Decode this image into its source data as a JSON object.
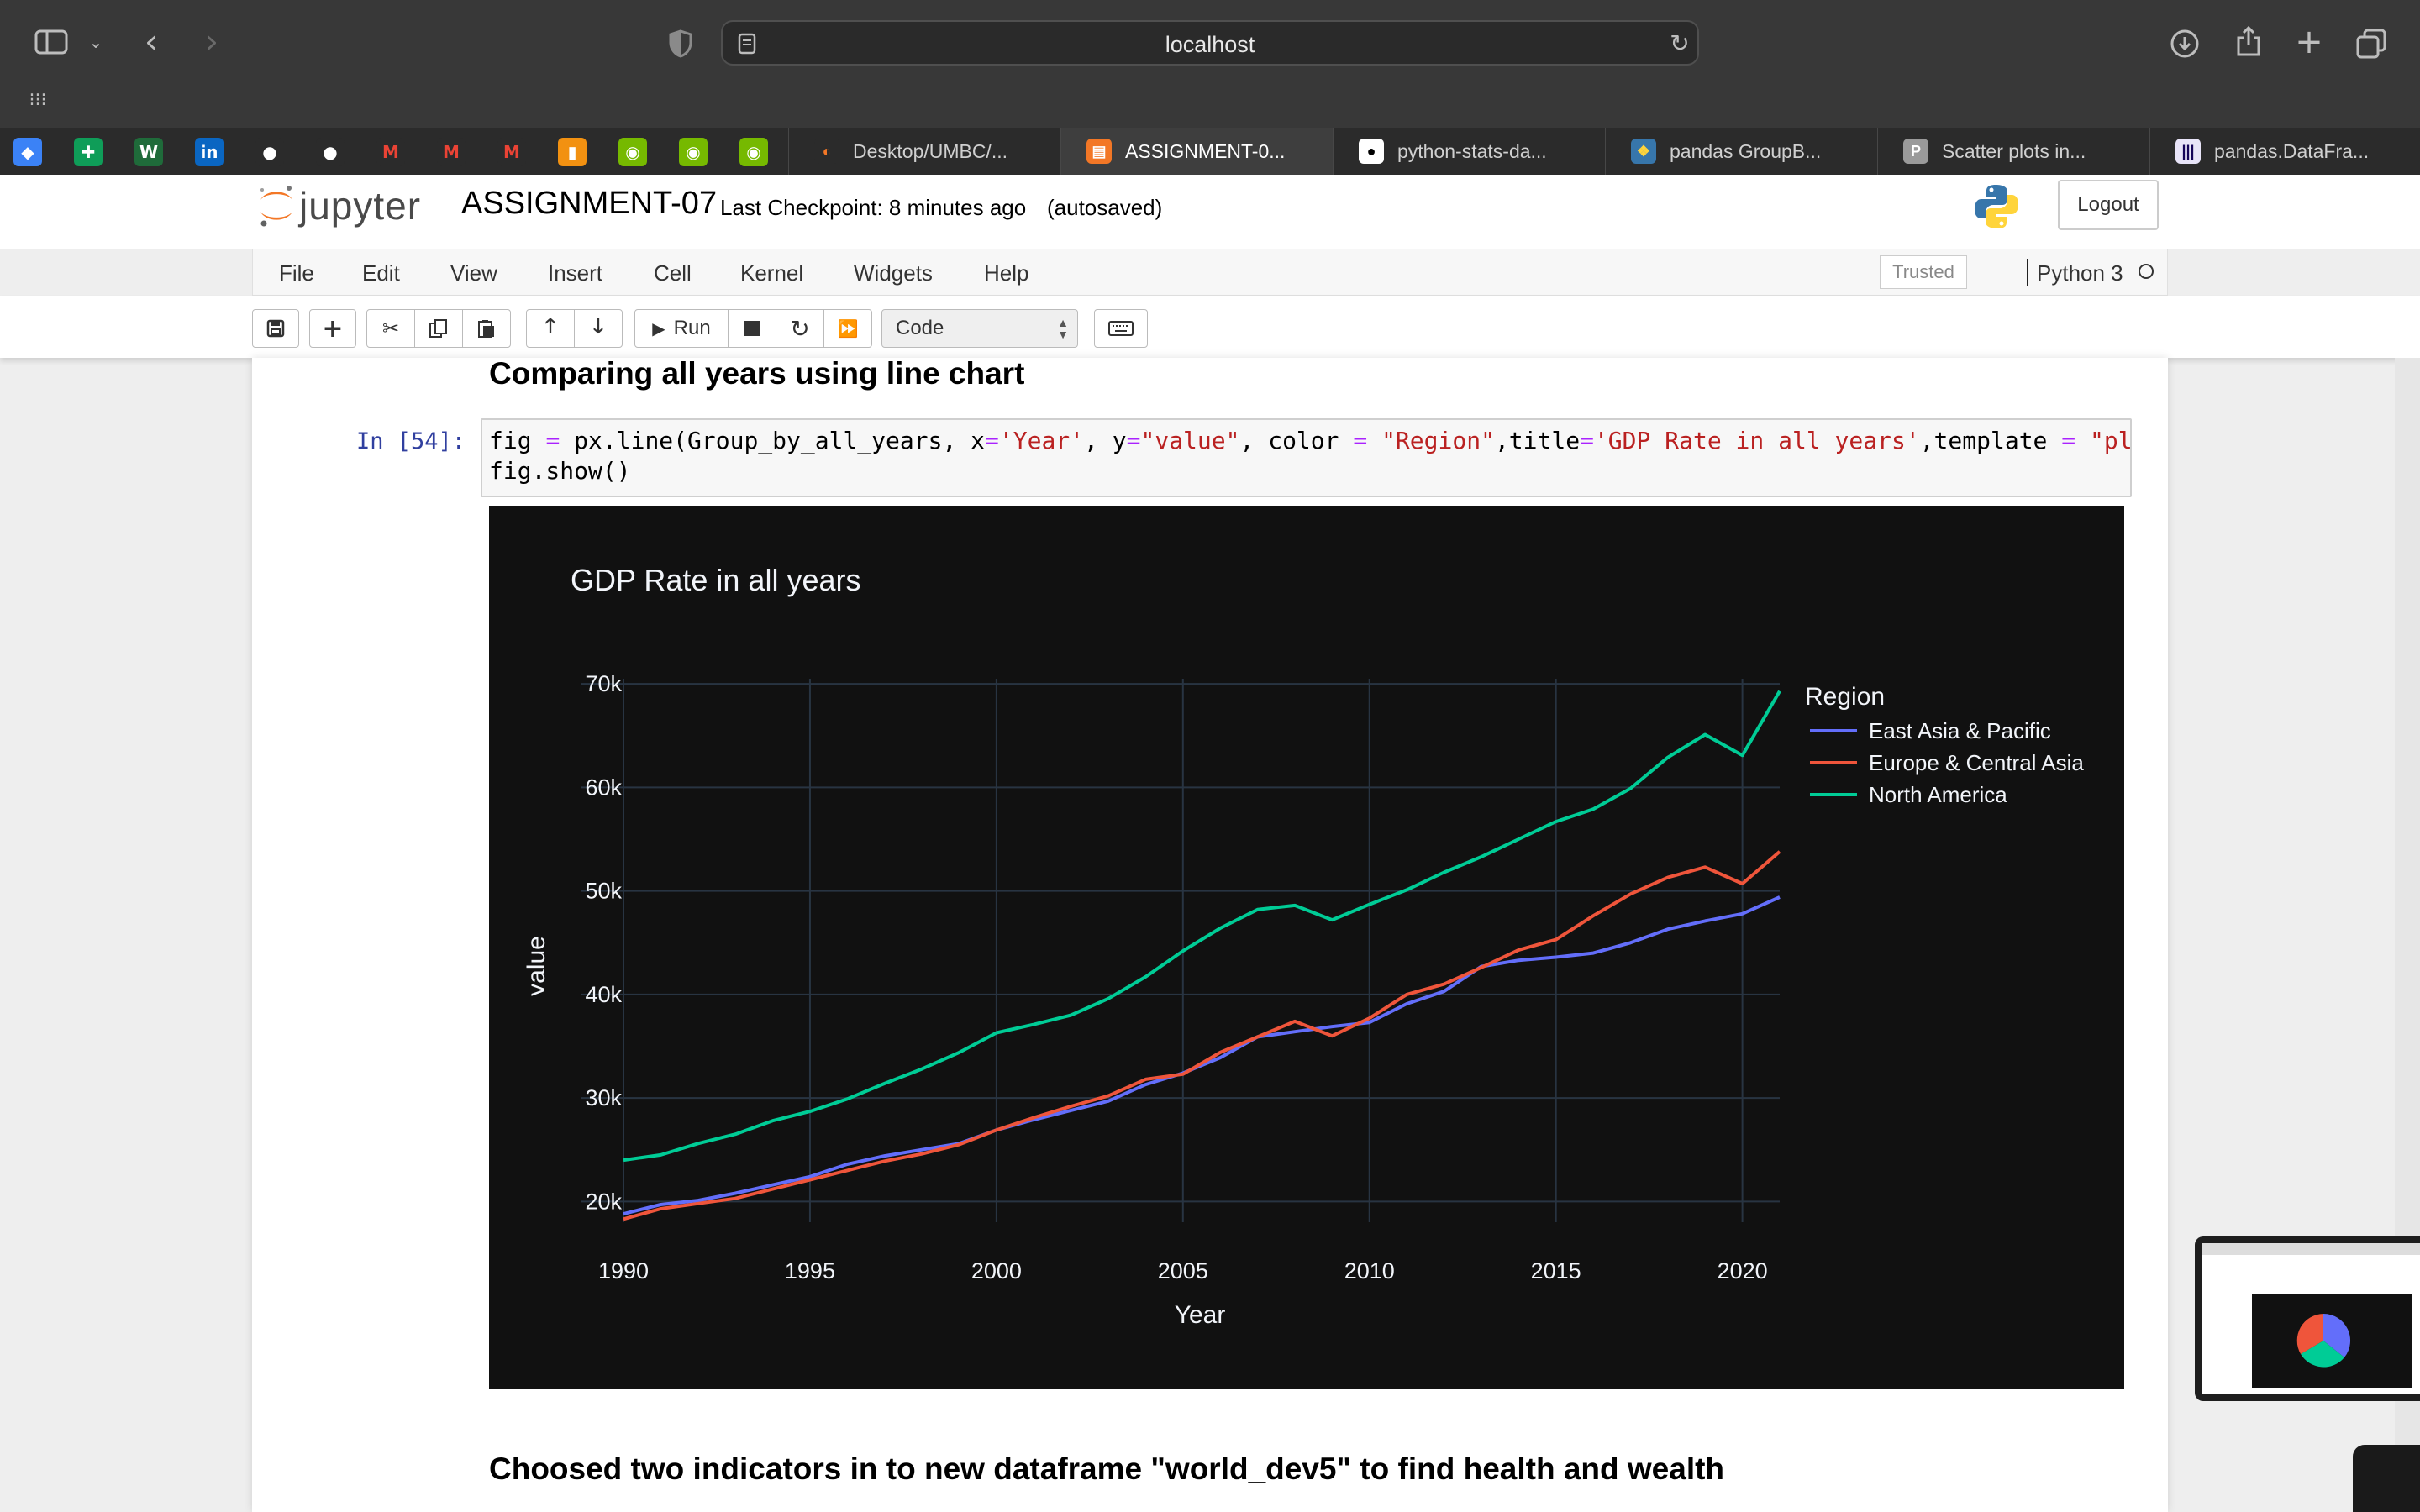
{
  "browser": {
    "url": "localhost",
    "tabs": [
      {
        "label": "Desktop/UMBC/...",
        "icon": "jupyter-icon",
        "active": false
      },
      {
        "label": "ASSIGNMENT-0...",
        "icon": "notebook-icon",
        "active": true
      },
      {
        "label": "python-stats-da...",
        "icon": "github-icon",
        "active": false
      },
      {
        "label": "pandas GroupB...",
        "icon": "python-icon",
        "active": false
      },
      {
        "label": "Scatter plots in...",
        "icon": "plotly-icon",
        "active": false
      },
      {
        "label": "pandas.DataFra...",
        "icon": "pandas-icon",
        "active": false
      }
    ],
    "favorites": [
      "bookmark-icon",
      "sheets-icon",
      "wix-icon",
      "linkedin-icon",
      "github-icon",
      "github-icon",
      "gmail-icon",
      "gmail-icon",
      "gmail-icon",
      "package-icon",
      "nvidia-icon",
      "nvidia-icon",
      "nvidia-icon"
    ]
  },
  "jupyter": {
    "logo_text": "jupyter",
    "notebook_title": "ASSIGNMENT-07",
    "checkpoint": "Last Checkpoint: 8 minutes ago",
    "autosaved": "(autosaved)",
    "logout_label": "Logout",
    "menu": [
      "File",
      "Edit",
      "View",
      "Insert",
      "Cell",
      "Kernel",
      "Widgets",
      "Help"
    ],
    "trusted_label": "Trusted",
    "kernel_name": "Python 3",
    "run_label": "Run",
    "cell_type": "Code"
  },
  "notebook": {
    "heading_1": "Comparing all years using line chart",
    "prompt": "In [54]:",
    "code_line_1": [
      {
        "t": "fig ",
        "c": ""
      },
      {
        "t": "=",
        "c": "c-op"
      },
      {
        "t": " px.line(Group_by_all_years, x",
        "c": ""
      },
      {
        "t": "=",
        "c": "c-op"
      },
      {
        "t": "'Year'",
        "c": "c-str"
      },
      {
        "t": ", y",
        "c": ""
      },
      {
        "t": "=",
        "c": "c-op"
      },
      {
        "t": "\"value\"",
        "c": "c-str"
      },
      {
        "t": ", color ",
        "c": ""
      },
      {
        "t": "=",
        "c": "c-op"
      },
      {
        "t": " ",
        "c": ""
      },
      {
        "t": "\"Region\"",
        "c": "c-str"
      },
      {
        "t": ",title",
        "c": ""
      },
      {
        "t": "=",
        "c": "c-op"
      },
      {
        "t": "'GDP Rate in all years'",
        "c": "c-str"
      },
      {
        "t": ",template ",
        "c": ""
      },
      {
        "t": "=",
        "c": "c-op"
      },
      {
        "t": " ",
        "c": ""
      },
      {
        "t": "\"pl",
        "c": "c-str"
      }
    ],
    "code_line_2": "fig.show()",
    "heading_2": "Choosed two indicators in to new dataframe \"world_dev5\" to find health and wealth"
  },
  "chart_data": {
    "type": "line",
    "title": "GDP Rate in all years",
    "xlabel": "Year",
    "ylabel": "value",
    "legend_title": "Region",
    "legend_position": "top-right",
    "grid": true,
    "xlim": [
      1990,
      2021
    ],
    "ylim": [
      18000,
      70500
    ],
    "x_ticks": [
      1990,
      1995,
      2000,
      2005,
      2010,
      2015,
      2020
    ],
    "y_ticks": [
      20000,
      30000,
      40000,
      50000,
      60000,
      70000
    ],
    "y_tick_labels": [
      "20k",
      "30k",
      "40k",
      "50k",
      "60k",
      "70k"
    ],
    "x": [
      1990,
      1991,
      1992,
      1993,
      1994,
      1995,
      1996,
      1997,
      1998,
      1999,
      2000,
      2001,
      2002,
      2003,
      2004,
      2005,
      2006,
      2007,
      2008,
      2009,
      2010,
      2011,
      2012,
      2013,
      2014,
      2015,
      2016,
      2017,
      2018,
      2019,
      2020,
      2021
    ],
    "series": [
      {
        "name": "East Asia & Pacific",
        "color": "#636efa",
        "values": [
          18800,
          19700,
          20100,
          20800,
          21600,
          22400,
          23600,
          24400,
          25000,
          25600,
          26900,
          27900,
          28800,
          29700,
          31300,
          32400,
          33900,
          35900,
          36400,
          36900,
          37300,
          39100,
          40300,
          42700,
          43300,
          43600,
          44000,
          45000,
          46300,
          47100,
          47800,
          49400
        ]
      },
      {
        "name": "Europe & Central Asia",
        "color": "#ef553b",
        "values": [
          18300,
          19300,
          19800,
          20300,
          21200,
          22100,
          23000,
          23900,
          24600,
          25500,
          26900,
          28100,
          29200,
          30200,
          31800,
          32300,
          34400,
          35900,
          37400,
          36000,
          37700,
          40000,
          41000,
          42600,
          44300,
          45300,
          47600,
          49700,
          51300,
          52300,
          50700,
          53800
        ]
      },
      {
        "name": "North America",
        "color": "#00cc96",
        "values": [
          24000,
          24500,
          25600,
          26500,
          27800,
          28700,
          29900,
          31400,
          32800,
          34400,
          36300,
          37100,
          38000,
          39600,
          41700,
          44200,
          46400,
          48200,
          48600,
          47200,
          48700,
          50100,
          51800,
          53300,
          55000,
          56700,
          57900,
          59900,
          62900,
          65100,
          63100,
          69300
        ]
      }
    ]
  }
}
